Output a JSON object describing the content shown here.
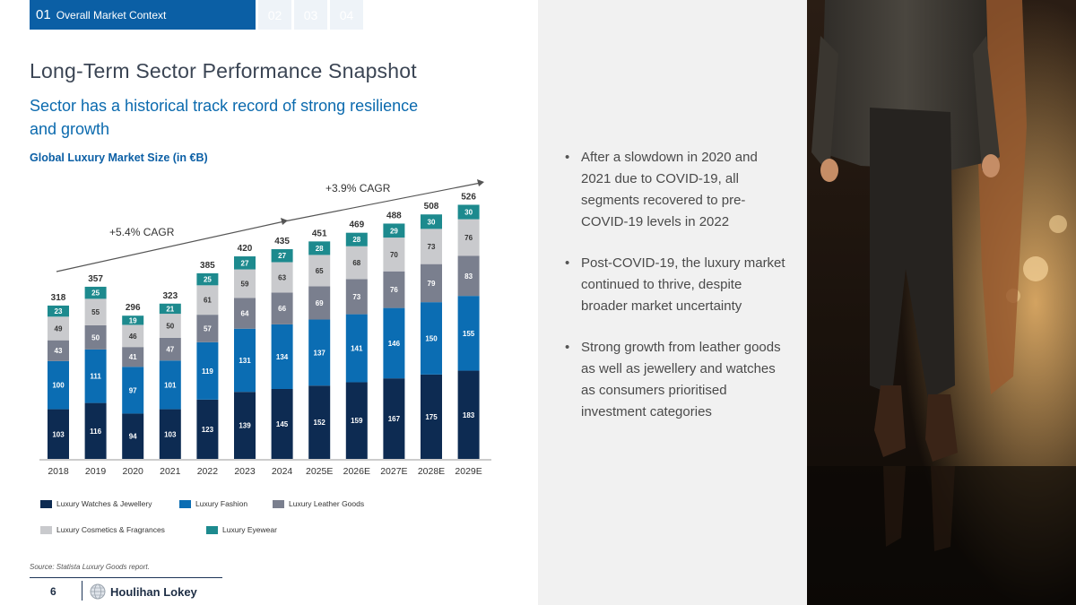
{
  "tabs": {
    "active_num": "01",
    "active_label": "Overall Market Context",
    "others": [
      "02",
      "03",
      "04"
    ]
  },
  "title": "Long-Term Sector Performance Snapshot",
  "subtitle": "Sector has a historical track record of strong resilience and growth",
  "chart_title": "Global Luxury Market Size (in €B)",
  "chart_data": {
    "type": "bar",
    "stacked": true,
    "title": "Global Luxury Market Size (in €B)",
    "categories": [
      "2018",
      "2019",
      "2020",
      "2021",
      "2022",
      "2023",
      "2024",
      "2025E",
      "2026E",
      "2027E",
      "2028E",
      "2029E"
    ],
    "series": [
      {
        "name": "Luxury Watches & Jewellery",
        "color": "#0d2b52",
        "values": [
          103,
          116,
          94,
          103,
          123,
          139,
          145,
          152,
          159,
          167,
          175,
          183
        ]
      },
      {
        "name": "Luxury Fashion",
        "color": "#0b6db3",
        "values": [
          100,
          111,
          97,
          101,
          119,
          131,
          134,
          137,
          141,
          146,
          150,
          155
        ]
      },
      {
        "name": "Luxury Leather Goods",
        "color": "#7a7f8e",
        "values": [
          43,
          50,
          41,
          47,
          57,
          64,
          66,
          69,
          73,
          76,
          79,
          83
        ]
      },
      {
        "name": "Luxury Cosmetics & Fragrances",
        "color": "#c9cacd",
        "values": [
          49,
          55,
          46,
          50,
          61,
          59,
          63,
          65,
          68,
          70,
          73,
          76
        ]
      },
      {
        "name": "Luxury Eyewear",
        "color": "#1d8a8e",
        "values": [
          23,
          25,
          19,
          21,
          25,
          27,
          27,
          28,
          28,
          29,
          30,
          30
        ]
      }
    ],
    "totals": [
      318,
      357,
      296,
      323,
      385,
      420,
      435,
      451,
      469,
      488,
      508,
      526
    ],
    "annotations": [
      "+5.4% CAGR",
      "+3.9% CAGR"
    ],
    "xlabel": "",
    "ylabel": ""
  },
  "source": "Source: Statista Luxury Goods report.",
  "page_number": "6",
  "brand": "Houlihan Lokey",
  "bullets": [
    "After a slowdown in 2020 and 2021 due to COVID-19, all segments recovered to pre-COVID-19 levels in 2022",
    "Post-COVID-19, the luxury market continued to thrive, despite broader market uncertainty",
    "Strong growth from leather goods as well as jewellery and watches as consumers prioritised investment categories"
  ]
}
